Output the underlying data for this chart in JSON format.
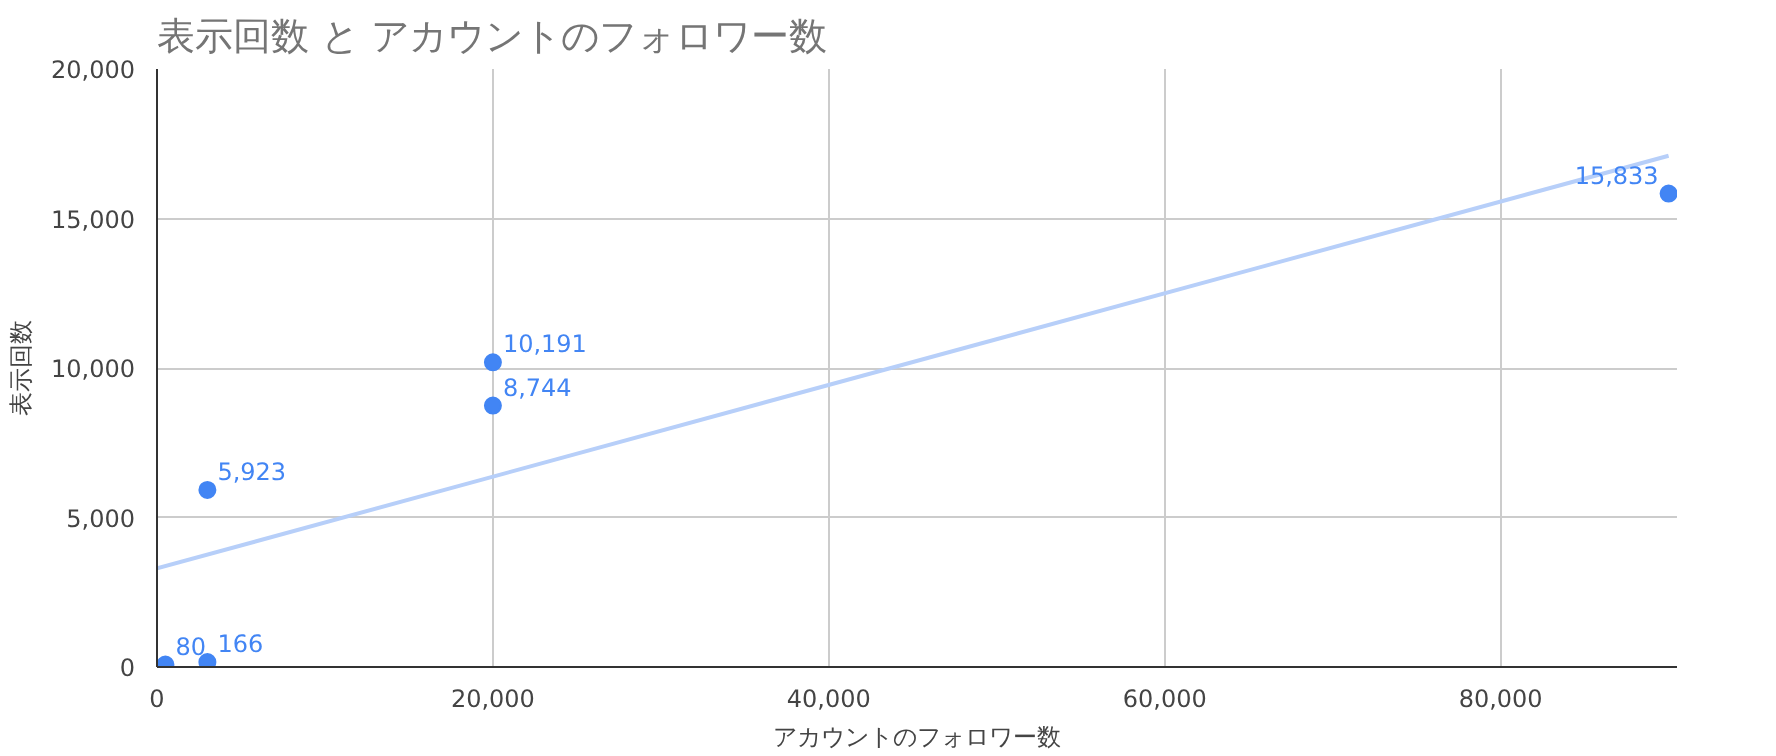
{
  "chart_data": {
    "type": "scatter",
    "title": "表示回数 と アカウントのフォロワー数",
    "xlabel": "アカウントのフォロワー数",
    "ylabel": "表示回数",
    "xlim": [
      0,
      90500
    ],
    "ylim": [
      0,
      20000
    ],
    "xticks": [
      0,
      {
        "value": 20000,
        "label": "20,000"
      },
      {
        "value": 40000,
        "label": "40,000"
      },
      {
        "value": 60000,
        "label": "60,000"
      },
      {
        "value": 80000,
        "label": "80,000"
      }
    ],
    "yticks": [
      0,
      {
        "value": 5000,
        "label": "5,000"
      },
      {
        "value": 10000,
        "label": "10,000"
      },
      {
        "value": 15000,
        "label": "15,000"
      },
      {
        "value": 20000,
        "label": "20,000"
      }
    ],
    "grid": true,
    "series": [
      {
        "color": "#4285f4",
        "marker": "circle",
        "x": [
          500,
          3000,
          3000,
          20000,
          20000,
          90000
        ],
        "values": [
          80,
          166,
          5923,
          8744,
          10191,
          15833
        ],
        "value_labels": [
          "80",
          "166",
          "5,923",
          "8,744",
          "10,191",
          "15,833"
        ]
      },
      {
        "type": "line",
        "color": "#b7cff9",
        "x": [
          0,
          90000
        ],
        "values": [
          3300,
          17100
        ]
      }
    ]
  }
}
